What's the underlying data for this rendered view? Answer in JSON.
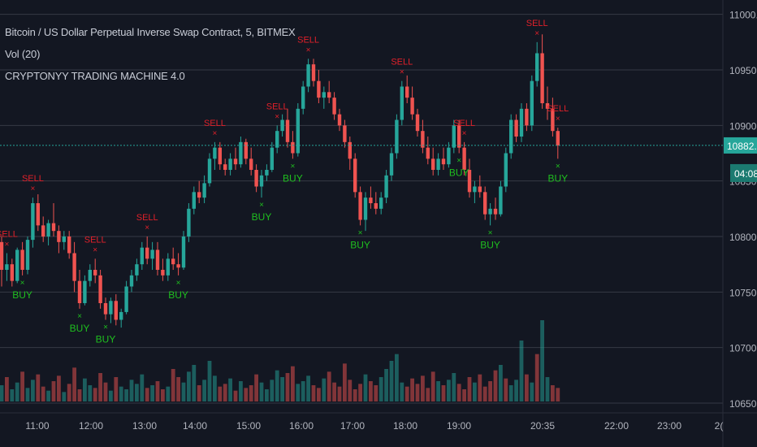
{
  "chart_title": "Bitcoin / US Dollar Perpetual Inverse Swap Contract, 5, BITMEX",
  "volume_study": "Vol (20)",
  "indicator_name": "CRYPTONYY TRADING MACHINE 4.0",
  "colors": {
    "background": "#131722",
    "grid": "#363a45",
    "up": "#26a69a",
    "down": "#ef5350",
    "buy": "#1fbf1f",
    "sell": "#e0202a",
    "price_line": "#26a69a",
    "axis_text": "#b2b5be"
  },
  "chart_data": {
    "type": "candlestick",
    "y_axis_ticks": [
      "11000.0",
      "10950.0",
      "10900.0",
      "10850.0",
      "10800.0",
      "10750.0",
      "10700.0",
      "10650.0"
    ],
    "x_axis_ticks": [
      "11:00",
      "12:00",
      "13:00",
      "14:00",
      "15:00",
      "16:00",
      "17:00",
      "18:00",
      "19:00",
      "20:35",
      "22:00",
      "23:00",
      "2("
    ],
    "ylim": [
      10650,
      11010
    ],
    "current_price": "10882.0",
    "countdown": "04:08",
    "candles": [
      {
        "t": "10:20",
        "o": 10795,
        "h": 10800,
        "l": 10755,
        "c": 10770
      },
      {
        "t": "10:25",
        "o": 10770,
        "h": 10785,
        "l": 10760,
        "c": 10775
      },
      {
        "t": "10:30",
        "o": 10775,
        "h": 10780,
        "l": 10755,
        "c": 10760
      },
      {
        "t": "10:35",
        "o": 10760,
        "h": 10790,
        "l": 10758,
        "c": 10788
      },
      {
        "t": "10:40",
        "o": 10788,
        "h": 10795,
        "l": 10765,
        "c": 10770
      },
      {
        "t": "10:45",
        "o": 10770,
        "h": 10800,
        "l": 10766,
        "c": 10797
      },
      {
        "t": "10:50",
        "o": 10797,
        "h": 10835,
        "l": 10790,
        "c": 10830
      },
      {
        "t": "10:55",
        "o": 10830,
        "h": 10838,
        "l": 10805,
        "c": 10810
      },
      {
        "t": "11:00",
        "o": 10810,
        "h": 10818,
        "l": 10795,
        "c": 10800
      },
      {
        "t": "11:05",
        "o": 10800,
        "h": 10815,
        "l": 10792,
        "c": 10812
      },
      {
        "t": "11:10",
        "o": 10812,
        "h": 10830,
        "l": 10800,
        "c": 10805
      },
      {
        "t": "11:15",
        "o": 10805,
        "h": 10810,
        "l": 10785,
        "c": 10795
      },
      {
        "t": "11:20",
        "o": 10795,
        "h": 10805,
        "l": 10788,
        "c": 10800
      },
      {
        "t": "11:25",
        "o": 10800,
        "h": 10805,
        "l": 10780,
        "c": 10785
      },
      {
        "t": "11:30",
        "o": 10785,
        "h": 10795,
        "l": 10750,
        "c": 10760
      },
      {
        "t": "11:35",
        "o": 10760,
        "h": 10770,
        "l": 10735,
        "c": 10740
      },
      {
        "t": "11:40",
        "o": 10740,
        "h": 10765,
        "l": 10738,
        "c": 10760
      },
      {
        "t": "11:45",
        "o": 10760,
        "h": 10775,
        "l": 10755,
        "c": 10770
      },
      {
        "t": "11:50",
        "o": 10770,
        "h": 10780,
        "l": 10758,
        "c": 10765
      },
      {
        "t": "11:55",
        "o": 10765,
        "h": 10770,
        "l": 10735,
        "c": 10740
      },
      {
        "t": "12:00",
        "o": 10740,
        "h": 10745,
        "l": 10725,
        "c": 10730
      },
      {
        "t": "12:05",
        "o": 10730,
        "h": 10745,
        "l": 10722,
        "c": 10742
      },
      {
        "t": "12:10",
        "o": 10742,
        "h": 10748,
        "l": 10720,
        "c": 10725
      },
      {
        "t": "12:15",
        "o": 10725,
        "h": 10735,
        "l": 10718,
        "c": 10732
      },
      {
        "t": "12:20",
        "o": 10732,
        "h": 10760,
        "l": 10730,
        "c": 10755
      },
      {
        "t": "12:25",
        "o": 10755,
        "h": 10770,
        "l": 10750,
        "c": 10765
      },
      {
        "t": "12:30",
        "o": 10765,
        "h": 10780,
        "l": 10760,
        "c": 10775
      },
      {
        "t": "12:35",
        "o": 10775,
        "h": 10795,
        "l": 10770,
        "c": 10790
      },
      {
        "t": "12:40",
        "o": 10790,
        "h": 10800,
        "l": 10775,
        "c": 10780
      },
      {
        "t": "12:45",
        "o": 10780,
        "h": 10795,
        "l": 10770,
        "c": 10788
      },
      {
        "t": "12:50",
        "o": 10788,
        "h": 10795,
        "l": 10765,
        "c": 10770
      },
      {
        "t": "12:55",
        "o": 10770,
        "h": 10780,
        "l": 10760,
        "c": 10765
      },
      {
        "t": "13:00",
        "o": 10765,
        "h": 10785,
        "l": 10760,
        "c": 10780
      },
      {
        "t": "13:05",
        "o": 10780,
        "h": 10790,
        "l": 10770,
        "c": 10775
      },
      {
        "t": "13:10",
        "o": 10775,
        "h": 10785,
        "l": 10765,
        "c": 10772
      },
      {
        "t": "13:15",
        "o": 10772,
        "h": 10805,
        "l": 10770,
        "c": 10800
      },
      {
        "t": "13:20",
        "o": 10800,
        "h": 10830,
        "l": 10795,
        "c": 10825
      },
      {
        "t": "13:25",
        "o": 10825,
        "h": 10845,
        "l": 10820,
        "c": 10840
      },
      {
        "t": "13:30",
        "o": 10840,
        "h": 10850,
        "l": 10830,
        "c": 10835
      },
      {
        "t": "13:35",
        "o": 10835,
        "h": 10855,
        "l": 10830,
        "c": 10848
      },
      {
        "t": "13:40",
        "o": 10848,
        "h": 10875,
        "l": 10845,
        "c": 10870
      },
      {
        "t": "13:45",
        "o": 10870,
        "h": 10885,
        "l": 10860,
        "c": 10880
      },
      {
        "t": "13:50",
        "o": 10880,
        "h": 10885,
        "l": 10860,
        "c": 10865
      },
      {
        "t": "13:55",
        "o": 10865,
        "h": 10870,
        "l": 10855,
        "c": 10860
      },
      {
        "t": "14:00",
        "o": 10860,
        "h": 10875,
        "l": 10855,
        "c": 10870
      },
      {
        "t": "14:05",
        "o": 10870,
        "h": 10880,
        "l": 10860,
        "c": 10865
      },
      {
        "t": "14:10",
        "o": 10865,
        "h": 10890,
        "l": 10862,
        "c": 10885
      },
      {
        "t": "14:15",
        "o": 10885,
        "h": 10888,
        "l": 10865,
        "c": 10870
      },
      {
        "t": "14:20",
        "o": 10870,
        "h": 10880,
        "l": 10855,
        "c": 10860
      },
      {
        "t": "14:25",
        "o": 10860,
        "h": 10865,
        "l": 10840,
        "c": 10845
      },
      {
        "t": "14:30",
        "o": 10845,
        "h": 10860,
        "l": 10835,
        "c": 10855
      },
      {
        "t": "14:35",
        "o": 10855,
        "h": 10865,
        "l": 10850,
        "c": 10860
      },
      {
        "t": "14:40",
        "o": 10860,
        "h": 10885,
        "l": 10858,
        "c": 10880
      },
      {
        "t": "14:45",
        "o": 10880,
        "h": 10900,
        "l": 10875,
        "c": 10895
      },
      {
        "t": "14:50",
        "o": 10895,
        "h": 10910,
        "l": 10890,
        "c": 10905
      },
      {
        "t": "14:55",
        "o": 10905,
        "h": 10915,
        "l": 10880,
        "c": 10885
      },
      {
        "t": "15:00",
        "o": 10885,
        "h": 10895,
        "l": 10870,
        "c": 10875
      },
      {
        "t": "15:05",
        "o": 10875,
        "h": 10920,
        "l": 10872,
        "c": 10915
      },
      {
        "t": "15:10",
        "o": 10915,
        "h": 10940,
        "l": 10910,
        "c": 10935
      },
      {
        "t": "15:15",
        "o": 10935,
        "h": 10960,
        "l": 10930,
        "c": 10955
      },
      {
        "t": "15:20",
        "o": 10955,
        "h": 10960,
        "l": 10935,
        "c": 10940
      },
      {
        "t": "15:25",
        "o": 10940,
        "h": 10950,
        "l": 10920,
        "c": 10925
      },
      {
        "t": "15:30",
        "o": 10925,
        "h": 10935,
        "l": 10915,
        "c": 10930
      },
      {
        "t": "15:35",
        "o": 10930,
        "h": 10940,
        "l": 10920,
        "c": 10925
      },
      {
        "t": "15:40",
        "o": 10925,
        "h": 10930,
        "l": 10905,
        "c": 10910
      },
      {
        "t": "15:45",
        "o": 10910,
        "h": 10915,
        "l": 10895,
        "c": 10900
      },
      {
        "t": "15:50",
        "o": 10900,
        "h": 10905,
        "l": 10880,
        "c": 10885
      },
      {
        "t": "15:55",
        "o": 10885,
        "h": 10890,
        "l": 10860,
        "c": 10870
      },
      {
        "t": "16:00",
        "o": 10870,
        "h": 10875,
        "l": 10835,
        "c": 10840
      },
      {
        "t": "16:05",
        "o": 10840,
        "h": 10845,
        "l": 10810,
        "c": 10815
      },
      {
        "t": "16:10",
        "o": 10815,
        "h": 10840,
        "l": 10805,
        "c": 10835
      },
      {
        "t": "16:15",
        "o": 10835,
        "h": 10845,
        "l": 10825,
        "c": 10830
      },
      {
        "t": "16:20",
        "o": 10830,
        "h": 10840,
        "l": 10820,
        "c": 10825
      },
      {
        "t": "16:25",
        "o": 10825,
        "h": 10840,
        "l": 10820,
        "c": 10835
      },
      {
        "t": "16:30",
        "o": 10835,
        "h": 10860,
        "l": 10830,
        "c": 10855
      },
      {
        "t": "16:35",
        "o": 10855,
        "h": 10880,
        "l": 10850,
        "c": 10875
      },
      {
        "t": "16:40",
        "o": 10875,
        "h": 10910,
        "l": 10870,
        "c": 10905
      },
      {
        "t": "16:45",
        "o": 10905,
        "h": 10940,
        "l": 10900,
        "c": 10935
      },
      {
        "t": "16:50",
        "o": 10935,
        "h": 10945,
        "l": 10920,
        "c": 10925
      },
      {
        "t": "16:55",
        "o": 10925,
        "h": 10935,
        "l": 10905,
        "c": 10910
      },
      {
        "t": "17:00",
        "o": 10910,
        "h": 10915,
        "l": 10890,
        "c": 10895
      },
      {
        "t": "17:05",
        "o": 10895,
        "h": 10905,
        "l": 10875,
        "c": 10880
      },
      {
        "t": "17:10",
        "o": 10880,
        "h": 10890,
        "l": 10865,
        "c": 10870
      },
      {
        "t": "17:15",
        "o": 10870,
        "h": 10880,
        "l": 10855,
        "c": 10860
      },
      {
        "t": "17:20",
        "o": 10860,
        "h": 10875,
        "l": 10855,
        "c": 10870
      },
      {
        "t": "17:25",
        "o": 10870,
        "h": 10880,
        "l": 10860,
        "c": 10865
      },
      {
        "t": "17:30",
        "o": 10865,
        "h": 10885,
        "l": 10862,
        "c": 10880
      },
      {
        "t": "17:35",
        "o": 10880,
        "h": 10905,
        "l": 10875,
        "c": 10900
      },
      {
        "t": "17:40",
        "o": 10900,
        "h": 10905,
        "l": 10875,
        "c": 10880
      },
      {
        "t": "17:45",
        "o": 10880,
        "h": 10885,
        "l": 10855,
        "c": 10860
      },
      {
        "t": "17:50",
        "o": 10860,
        "h": 10870,
        "l": 10835,
        "c": 10840
      },
      {
        "t": "17:55",
        "o": 10840,
        "h": 10850,
        "l": 10830,
        "c": 10845
      },
      {
        "t": "18:00",
        "o": 10845,
        "h": 10855,
        "l": 10835,
        "c": 10840
      },
      {
        "t": "18:05",
        "o": 10840,
        "h": 10845,
        "l": 10815,
        "c": 10820
      },
      {
        "t": "18:10",
        "o": 10820,
        "h": 10830,
        "l": 10810,
        "c": 10825
      },
      {
        "t": "18:15",
        "o": 10825,
        "h": 10835,
        "l": 10815,
        "c": 10820
      },
      {
        "t": "18:20",
        "o": 10820,
        "h": 10850,
        "l": 10818,
        "c": 10845
      },
      {
        "t": "18:25",
        "o": 10845,
        "h": 10880,
        "l": 10840,
        "c": 10875
      },
      {
        "t": "18:30",
        "o": 10875,
        "h": 10910,
        "l": 10870,
        "c": 10905
      },
      {
        "t": "18:35",
        "o": 10905,
        "h": 10910,
        "l": 10885,
        "c": 10890
      },
      {
        "t": "18:40",
        "o": 10890,
        "h": 10920,
        "l": 10885,
        "c": 10915
      },
      {
        "t": "18:45",
        "o": 10915,
        "h": 10920,
        "l": 10895,
        "c": 10900
      },
      {
        "t": "18:50",
        "o": 10900,
        "h": 10945,
        "l": 10895,
        "c": 10940
      },
      {
        "t": "18:55",
        "o": 10940,
        "h": 10975,
        "l": 10935,
        "c": 10965
      },
      {
        "t": "19:00",
        "o": 10965,
        "h": 10982,
        "l": 10915,
        "c": 10920
      },
      {
        "t": "19:05",
        "o": 10920,
        "h": 10935,
        "l": 10905,
        "c": 10915
      },
      {
        "t": "19:10",
        "o": 10915,
        "h": 10925,
        "l": 10890,
        "c": 10895
      },
      {
        "t": "19:15",
        "o": 10895,
        "h": 10898,
        "l": 10870,
        "c": 10882
      }
    ],
    "volume": [
      12,
      18,
      9,
      14,
      22,
      10,
      16,
      20,
      11,
      8,
      15,
      19,
      7,
      13,
      25,
      9,
      17,
      12,
      10,
      21,
      14,
      8,
      18,
      11,
      9,
      16,
      13,
      20,
      10,
      12,
      15,
      9,
      11,
      24,
      18,
      14,
      22,
      27,
      12,
      16,
      30,
      19,
      11,
      13,
      17,
      8,
      15,
      10,
      12,
      20,
      14,
      9,
      16,
      23,
      18,
      21,
      26,
      13,
      15,
      19,
      12,
      10,
      17,
      22,
      14,
      11,
      28,
      16,
      9,
      13,
      20,
      15,
      12,
      18,
      24,
      30,
      35,
      14,
      11,
      17,
      13,
      19,
      10,
      22,
      15,
      12,
      16,
      21,
      13,
      9,
      18,
      14,
      20,
      11,
      15,
      23,
      27,
      17,
      12,
      16,
      45,
      20,
      14,
      35,
      60,
      18,
      12,
      10
    ],
    "volume_up": [
      true,
      false,
      true,
      true,
      false,
      true,
      true,
      false,
      false,
      true,
      false,
      false,
      true,
      false,
      false,
      false,
      true,
      true,
      false,
      false,
      false,
      true,
      false,
      true,
      true,
      true,
      true,
      true,
      false,
      true,
      false,
      false,
      true,
      false,
      false,
      true,
      true,
      true,
      false,
      true,
      true,
      true,
      false,
      false,
      true,
      false,
      true,
      false,
      false,
      false,
      true,
      true,
      true,
      true,
      true,
      false,
      false,
      true,
      true,
      true,
      false,
      false,
      true,
      false,
      false,
      false,
      false,
      false,
      false,
      false,
      true,
      false,
      false,
      true,
      true,
      true,
      true,
      true,
      false,
      false,
      false,
      false,
      false,
      false,
      true,
      false,
      true,
      true,
      false,
      false,
      false,
      true,
      false,
      false,
      false,
      false,
      true,
      false,
      true,
      true,
      true,
      false,
      true,
      false,
      true,
      true,
      false,
      false
    ],
    "signals": [
      {
        "type": "SELL",
        "i": 6
      },
      {
        "type": "SELL",
        "i": 1
      },
      {
        "type": "BUY",
        "i": 4
      },
      {
        "type": "SELL",
        "i": 18
      },
      {
        "type": "BUY",
        "i": 15
      },
      {
        "type": "BUY",
        "i": 20
      },
      {
        "type": "SELL",
        "i": 28
      },
      {
        "type": "BUY",
        "i": 34
      },
      {
        "type": "SELL",
        "i": 41
      },
      {
        "type": "BUY",
        "i": 50
      },
      {
        "type": "SELL",
        "i": 53
      },
      {
        "type": "BUY",
        "i": 56
      },
      {
        "type": "SELL",
        "i": 59
      },
      {
        "type": "BUY",
        "i": 69
      },
      {
        "type": "SELL",
        "i": 77
      },
      {
        "type": "SELL",
        "i": 89
      },
      {
        "type": "BUY",
        "i": 88
      },
      {
        "type": "BUY",
        "i": 94
      },
      {
        "type": "SELL",
        "i": 103
      },
      {
        "type": "BUY",
        "i": 107
      },
      {
        "type": "SELL",
        "i": 110
      }
    ]
  }
}
